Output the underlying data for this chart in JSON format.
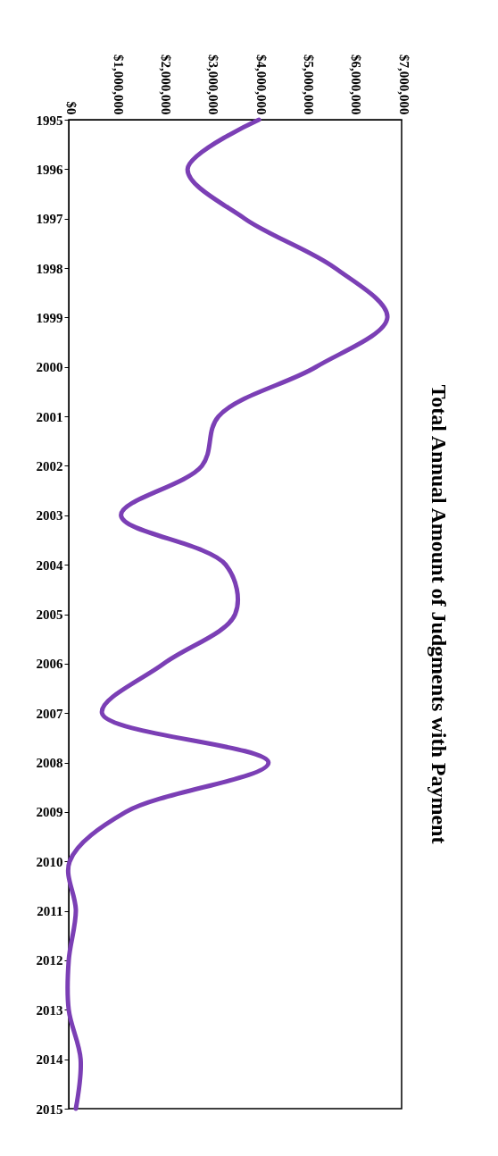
{
  "chart_data": {
    "type": "line",
    "orientation": "horizontal",
    "title": "Total Annual Amount of Judgments with Payment",
    "categories": [
      "1995",
      "1996",
      "1997",
      "1998",
      "1999",
      "2000",
      "2001",
      "2002",
      "2003",
      "2004",
      "2005",
      "2006",
      "2007",
      "2008",
      "2009",
      "2010",
      "2011",
      "2012",
      "2013",
      "2014",
      "2015"
    ],
    "series": [
      {
        "color": "#7b3fb5",
        "values": [
          4000000,
          2500000,
          3700000,
          5600000,
          6700000,
          5200000,
          3150000,
          2800000,
          1100000,
          3300000,
          3500000,
          2000000,
          700000,
          4200000,
          1200000,
          20000,
          150000,
          0,
          0,
          250000,
          150000
        ]
      }
    ],
    "xlim": [
      0,
      7000000
    ],
    "xticks": [
      {
        "value": 0,
        "label": "$0"
      },
      {
        "value": 1000000,
        "label": "$1,000,000"
      },
      {
        "value": 2000000,
        "label": "$2,000,000"
      },
      {
        "value": 3000000,
        "label": "$3,000,000"
      },
      {
        "value": 4000000,
        "label": "$4,000,000"
      },
      {
        "value": 5000000,
        "label": "$5,000,000"
      },
      {
        "value": 6000000,
        "label": "$6,000,000"
      },
      {
        "value": 7000000,
        "label": "$7,000,000"
      }
    ],
    "grid": false,
    "legend": false,
    "marker": "none",
    "line_style": "solid"
  }
}
